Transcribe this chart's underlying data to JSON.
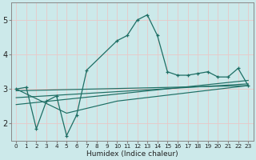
{
  "bg_color": "#cce9ea",
  "grid_color": "#b0d8d8",
  "line_color": "#1e6e64",
  "xlabel": "Humidex (Indice chaleur)",
  "ylim": [
    1.5,
    5.5
  ],
  "xlim": [
    -0.5,
    23.5
  ],
  "yticks": [
    2,
    3,
    4,
    5
  ],
  "xticks": [
    0,
    1,
    2,
    3,
    4,
    5,
    6,
    7,
    8,
    9,
    10,
    11,
    12,
    13,
    14,
    15,
    16,
    17,
    18,
    19,
    20,
    21,
    22,
    23
  ],
  "main_line": {
    "x": [
      0,
      1,
      2,
      3,
      4,
      5,
      6,
      7,
      10,
      11,
      12,
      13,
      14,
      15,
      16,
      17,
      18,
      19,
      20,
      21,
      22,
      23
    ],
    "y": [
      3.0,
      3.05,
      1.85,
      2.65,
      2.8,
      1.65,
      2.25,
      3.55,
      4.4,
      4.55,
      5.0,
      5.15,
      4.55,
      3.5,
      3.4,
      3.4,
      3.45,
      3.5,
      3.35,
      3.35,
      3.6,
      3.1
    ]
  },
  "trend_lines": [
    {
      "x": [
        0,
        5,
        10,
        23
      ],
      "y": [
        3.0,
        2.3,
        2.65,
        3.1
      ]
    },
    {
      "x": [
        0,
        23
      ],
      "y": [
        2.95,
        3.1
      ]
    },
    {
      "x": [
        0,
        23
      ],
      "y": [
        2.75,
        3.15
      ]
    },
    {
      "x": [
        0,
        23
      ],
      "y": [
        2.55,
        3.25
      ]
    }
  ]
}
